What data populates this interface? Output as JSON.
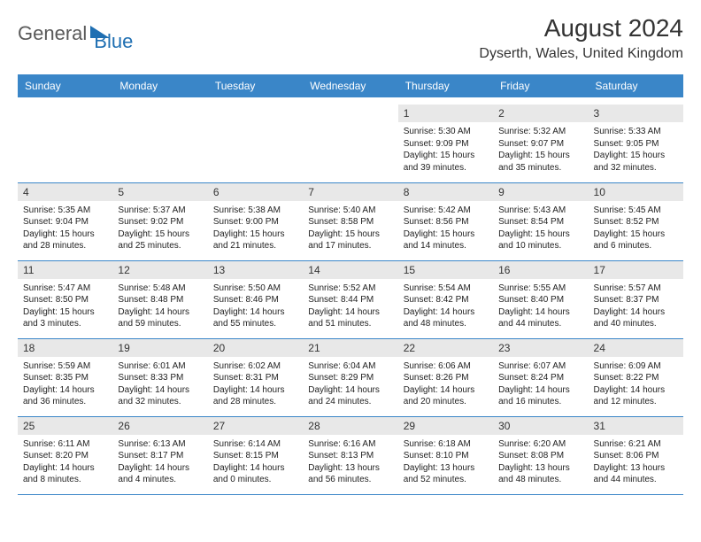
{
  "logo": {
    "text_gray": "General",
    "text_blue": "Blue"
  },
  "title": "August 2024",
  "location": "Dyserth, Wales, United Kingdom",
  "colors": {
    "header_bg": "#3a86c8",
    "daynum_bg": "#e8e8e8",
    "border": "#3a86c8"
  },
  "weekdays": [
    "Sunday",
    "Monday",
    "Tuesday",
    "Wednesday",
    "Thursday",
    "Friday",
    "Saturday"
  ],
  "weeks": [
    [
      null,
      null,
      null,
      null,
      {
        "n": "1",
        "sr": "5:30 AM",
        "ss": "9:09 PM",
        "dl": "15 hours and 39 minutes."
      },
      {
        "n": "2",
        "sr": "5:32 AM",
        "ss": "9:07 PM",
        "dl": "15 hours and 35 minutes."
      },
      {
        "n": "3",
        "sr": "5:33 AM",
        "ss": "9:05 PM",
        "dl": "15 hours and 32 minutes."
      }
    ],
    [
      {
        "n": "4",
        "sr": "5:35 AM",
        "ss": "9:04 PM",
        "dl": "15 hours and 28 minutes."
      },
      {
        "n": "5",
        "sr": "5:37 AM",
        "ss": "9:02 PM",
        "dl": "15 hours and 25 minutes."
      },
      {
        "n": "6",
        "sr": "5:38 AM",
        "ss": "9:00 PM",
        "dl": "15 hours and 21 minutes."
      },
      {
        "n": "7",
        "sr": "5:40 AM",
        "ss": "8:58 PM",
        "dl": "15 hours and 17 minutes."
      },
      {
        "n": "8",
        "sr": "5:42 AM",
        "ss": "8:56 PM",
        "dl": "15 hours and 14 minutes."
      },
      {
        "n": "9",
        "sr": "5:43 AM",
        "ss": "8:54 PM",
        "dl": "15 hours and 10 minutes."
      },
      {
        "n": "10",
        "sr": "5:45 AM",
        "ss": "8:52 PM",
        "dl": "15 hours and 6 minutes."
      }
    ],
    [
      {
        "n": "11",
        "sr": "5:47 AM",
        "ss": "8:50 PM",
        "dl": "15 hours and 3 minutes."
      },
      {
        "n": "12",
        "sr": "5:48 AM",
        "ss": "8:48 PM",
        "dl": "14 hours and 59 minutes."
      },
      {
        "n": "13",
        "sr": "5:50 AM",
        "ss": "8:46 PM",
        "dl": "14 hours and 55 minutes."
      },
      {
        "n": "14",
        "sr": "5:52 AM",
        "ss": "8:44 PM",
        "dl": "14 hours and 51 minutes."
      },
      {
        "n": "15",
        "sr": "5:54 AM",
        "ss": "8:42 PM",
        "dl": "14 hours and 48 minutes."
      },
      {
        "n": "16",
        "sr": "5:55 AM",
        "ss": "8:40 PM",
        "dl": "14 hours and 44 minutes."
      },
      {
        "n": "17",
        "sr": "5:57 AM",
        "ss": "8:37 PM",
        "dl": "14 hours and 40 minutes."
      }
    ],
    [
      {
        "n": "18",
        "sr": "5:59 AM",
        "ss": "8:35 PM",
        "dl": "14 hours and 36 minutes."
      },
      {
        "n": "19",
        "sr": "6:01 AM",
        "ss": "8:33 PM",
        "dl": "14 hours and 32 minutes."
      },
      {
        "n": "20",
        "sr": "6:02 AM",
        "ss": "8:31 PM",
        "dl": "14 hours and 28 minutes."
      },
      {
        "n": "21",
        "sr": "6:04 AM",
        "ss": "8:29 PM",
        "dl": "14 hours and 24 minutes."
      },
      {
        "n": "22",
        "sr": "6:06 AM",
        "ss": "8:26 PM",
        "dl": "14 hours and 20 minutes."
      },
      {
        "n": "23",
        "sr": "6:07 AM",
        "ss": "8:24 PM",
        "dl": "14 hours and 16 minutes."
      },
      {
        "n": "24",
        "sr": "6:09 AM",
        "ss": "8:22 PM",
        "dl": "14 hours and 12 minutes."
      }
    ],
    [
      {
        "n": "25",
        "sr": "6:11 AM",
        "ss": "8:20 PM",
        "dl": "14 hours and 8 minutes."
      },
      {
        "n": "26",
        "sr": "6:13 AM",
        "ss": "8:17 PM",
        "dl": "14 hours and 4 minutes."
      },
      {
        "n": "27",
        "sr": "6:14 AM",
        "ss": "8:15 PM",
        "dl": "14 hours and 0 minutes."
      },
      {
        "n": "28",
        "sr": "6:16 AM",
        "ss": "8:13 PM",
        "dl": "13 hours and 56 minutes."
      },
      {
        "n": "29",
        "sr": "6:18 AM",
        "ss": "8:10 PM",
        "dl": "13 hours and 52 minutes."
      },
      {
        "n": "30",
        "sr": "6:20 AM",
        "ss": "8:08 PM",
        "dl": "13 hours and 48 minutes."
      },
      {
        "n": "31",
        "sr": "6:21 AM",
        "ss": "8:06 PM",
        "dl": "13 hours and 44 minutes."
      }
    ]
  ],
  "labels": {
    "sunrise": "Sunrise:",
    "sunset": "Sunset:",
    "daylight": "Daylight:"
  }
}
